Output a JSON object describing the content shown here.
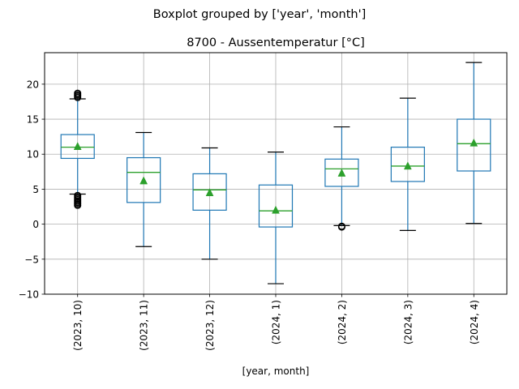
{
  "figure": {
    "suptitle": "Boxplot grouped by ['year', 'month']"
  },
  "chart_data": {
    "type": "box",
    "title": "8700 - Aussentemperatur [°C]",
    "xlabel": "[year, month]",
    "ylabel": "",
    "ylim": [
      -10,
      24.5
    ],
    "yticks": [
      -10,
      -5,
      0,
      5,
      10,
      15,
      20
    ],
    "grid": true,
    "categories": [
      "(2023, 10)",
      "(2023, 11)",
      "(2023, 12)",
      "(2024, 1)",
      "(2024, 2)",
      "(2024, 3)",
      "(2024, 4)"
    ],
    "boxes": [
      {
        "whislo": 4.3,
        "q1": 9.4,
        "med": 11.0,
        "q3": 12.8,
        "whishi": 17.9,
        "mean": 11.1,
        "fliers": [
          18.1,
          18.3,
          18.5,
          18.7,
          4.1,
          3.9,
          3.7,
          3.5,
          3.3,
          3.1,
          2.9,
          2.7
        ]
      },
      {
        "whislo": -3.2,
        "q1": 3.1,
        "med": 7.4,
        "q3": 9.5,
        "whishi": 13.1,
        "mean": 6.2,
        "fliers": []
      },
      {
        "whislo": -5.0,
        "q1": 2.0,
        "med": 4.9,
        "q3": 7.2,
        "whishi": 10.9,
        "mean": 4.5,
        "fliers": []
      },
      {
        "whislo": -8.5,
        "q1": -0.4,
        "med": 1.9,
        "q3": 5.6,
        "whishi": 10.3,
        "mean": 2.0,
        "fliers": []
      },
      {
        "whislo": -0.2,
        "q1": 5.4,
        "med": 7.9,
        "q3": 9.3,
        "whishi": 13.9,
        "mean": 7.3,
        "fliers": [
          -0.3,
          -0.4
        ]
      },
      {
        "whislo": -0.9,
        "q1": 6.1,
        "med": 8.3,
        "q3": 11.0,
        "whishi": 18.0,
        "mean": 8.3,
        "fliers": []
      },
      {
        "whislo": 0.1,
        "q1": 7.6,
        "med": 11.5,
        "q3": 15.0,
        "whishi": 23.1,
        "mean": 11.6,
        "fliers": []
      }
    ],
    "colors": {
      "box": "#1f77b4",
      "median": "#2ca02c",
      "mean": "#2ca02c",
      "whisker_cap": "#000000",
      "grid": "#b0b0b0"
    }
  }
}
